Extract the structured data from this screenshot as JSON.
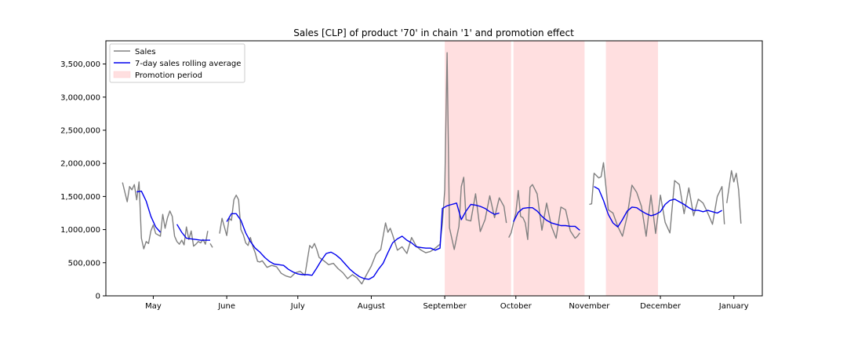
{
  "chart_data": {
    "type": "line",
    "title": "Sales [CLP] of product '70' in chain '1' and promotion effect",
    "xlabel": "",
    "ylabel": "",
    "x_tick_labels": [
      "May",
      "June",
      "July",
      "August",
      "September",
      "October",
      "November",
      "December",
      "January"
    ],
    "y_tick_labels": [
      "0",
      "500,000",
      "1,000,000",
      "1,500,000",
      "2,000,000",
      "2,500,000",
      "3,000,000",
      "3,500,000"
    ],
    "ylim": [
      0,
      3850000
    ],
    "xlim": [
      "2021-04-11",
      "2022-01-13"
    ],
    "grid": false,
    "legend": {
      "placement": "top-left",
      "entries": [
        "Sales",
        "7-day sales rolling average",
        "Promotion period"
      ]
    },
    "colors": {
      "sales": "#808080",
      "rolling": "#0000ee",
      "promotion": "#ffdfe0"
    },
    "series": [
      {
        "name": "Sales",
        "x": [
          "2021-04-18",
          "2021-04-20",
          "2021-04-21",
          "2021-04-22",
          "2021-04-23",
          "2021-04-24",
          "2021-04-25",
          "2021-04-26",
          "2021-04-27",
          "2021-04-28",
          "2021-04-29",
          "2021-04-30",
          "2021-05-01",
          "2021-05-02",
          "2021-05-03",
          "2021-05-04",
          "2021-05-05",
          "2021-05-06",
          "2021-05-07",
          "2021-05-08",
          "2021-05-09",
          "2021-05-10",
          "2021-05-11",
          "2021-05-12",
          "2021-05-13",
          "2021-05-14",
          "2021-05-15",
          "2021-05-16",
          "2021-05-17",
          "2021-05-18",
          "2021-05-19",
          "2021-05-20",
          "2021-05-21",
          "2021-05-22",
          "2021-05-23",
          "2021-05-24",
          null,
          "2021-05-25",
          "2021-05-26",
          null,
          "2021-05-29",
          "2021-05-30",
          "2021-06-01",
          "2021-06-02",
          "2021-06-03",
          "2021-06-04",
          "2021-06-05",
          "2021-06-06",
          "2021-06-07",
          "2021-06-08",
          "2021-06-09",
          "2021-06-10",
          "2021-06-11",
          "2021-06-12",
          "2021-06-13",
          "2021-06-14",
          "2021-06-15",
          "2021-06-16",
          "2021-06-18",
          "2021-06-20",
          "2021-06-22",
          "2021-06-24",
          "2021-06-26",
          "2021-06-28",
          "2021-06-30",
          "2021-07-02",
          "2021-07-04",
          "2021-07-06",
          "2021-07-07",
          "2021-07-08",
          "2021-07-09",
          "2021-07-10",
          "2021-07-12",
          "2021-07-14",
          "2021-07-16",
          "2021-07-18",
          "2021-07-20",
          "2021-07-22",
          "2021-07-24",
          "2021-07-26",
          "2021-07-28",
          "2021-07-30",
          "2021-08-01",
          "2021-08-03",
          "2021-08-05",
          "2021-08-07",
          "2021-08-08",
          "2021-08-09",
          "2021-08-10",
          "2021-08-12",
          "2021-08-14",
          "2021-08-16",
          "2021-08-18",
          "2021-08-20",
          "2021-08-22",
          "2021-08-24",
          "2021-08-26",
          "2021-08-28",
          "2021-08-30",
          "2021-08-31",
          "2021-09-01",
          "2021-09-02",
          "2021-09-03",
          "2021-09-05",
          "2021-09-07",
          "2021-09-08",
          "2021-09-09",
          "2021-09-10",
          "2021-09-12",
          "2021-09-14",
          "2021-09-16",
          "2021-09-18",
          "2021-09-20",
          "2021-09-22",
          "2021-09-24",
          "2021-09-26",
          "2021-09-27",
          null,
          "2021-09-28",
          "2021-09-29",
          "2021-10-01",
          "2021-10-02",
          "2021-10-03",
          "2021-10-04",
          "2021-10-05",
          "2021-10-06",
          "2021-10-07",
          "2021-10-08",
          "2021-10-10",
          "2021-10-12",
          "2021-10-14",
          "2021-10-16",
          "2021-10-18",
          "2021-10-20",
          "2021-10-22",
          "2021-10-24",
          "2021-10-26",
          "2021-10-27",
          "2021-10-28",
          null,
          "2021-11-01",
          "2021-11-02",
          "2021-11-03",
          "2021-11-05",
          "2021-11-06",
          "2021-11-07",
          "2021-11-09",
          "2021-11-11",
          "2021-11-13",
          "2021-11-15",
          "2021-11-17",
          "2021-11-19",
          "2021-11-21",
          "2021-11-23",
          "2021-11-25",
          "2021-11-27",
          "2021-11-29",
          "2021-12-01",
          "2021-12-03",
          "2021-12-05",
          "2021-12-07",
          "2021-12-09",
          "2021-12-11",
          "2021-12-13",
          "2021-12-15",
          "2021-12-17",
          "2021-12-19",
          "2021-12-21",
          "2021-12-23",
          "2021-12-25",
          "2021-12-27",
          "2021-12-28",
          null,
          "2021-12-29",
          "2021-12-31",
          "2022-01-01",
          "2022-01-02",
          "2022-01-03",
          "2022-01-04"
        ],
        "values": [
          1710000,
          1420000,
          1650000,
          1600000,
          1680000,
          1450000,
          1720000,
          870000,
          710000,
          820000,
          790000,
          980000,
          1070000,
          940000,
          920000,
          900000,
          1230000,
          1020000,
          1180000,
          1280000,
          1200000,
          900000,
          820000,
          780000,
          840000,
          770000,
          1040000,
          850000,
          980000,
          750000,
          780000,
          820000,
          800000,
          850000,
          780000,
          980000,
          null,
          790000,
          730000,
          null,
          940000,
          1170000,
          910000,
          1170000,
          1140000,
          1450000,
          1520000,
          1450000,
          1000000,
          920000,
          800000,
          760000,
          880000,
          750000,
          650000,
          520000,
          510000,
          530000,
          430000,
          460000,
          440000,
          340000,
          300000,
          280000,
          350000,
          370000,
          310000,
          760000,
          720000,
          790000,
          700000,
          580000,
          530000,
          470000,
          490000,
          410000,
          350000,
          260000,
          320000,
          270000,
          180000,
          320000,
          450000,
          630000,
          700000,
          1100000,
          960000,
          1020000,
          920000,
          690000,
          740000,
          640000,
          880000,
          750000,
          690000,
          650000,
          670000,
          720000,
          780000,
          1100000,
          1600000,
          3670000,
          1030000,
          700000,
          1050000,
          1650000,
          1790000,
          1150000,
          1130000,
          1540000,
          970000,
          1150000,
          1510000,
          1180000,
          1480000,
          1350000,
          1100000,
          null,
          880000,
          950000,
          1250000,
          1590000,
          1200000,
          1180000,
          1100000,
          850000,
          1640000,
          1680000,
          1540000,
          990000,
          1400000,
          1050000,
          870000,
          1340000,
          1300000,
          980000,
          870000,
          900000,
          950000,
          null,
          1380000,
          1390000,
          1850000,
          1780000,
          1800000,
          2010000,
          1300000,
          1250000,
          1050000,
          900000,
          1210000,
          1670000,
          1560000,
          1350000,
          900000,
          1520000,
          940000,
          1520000,
          1110000,
          950000,
          1740000,
          1680000,
          1240000,
          1630000,
          1210000,
          1460000,
          1400000,
          1250000,
          1080000,
          1500000,
          1650000,
          1080000,
          null,
          1400000,
          1890000,
          1720000,
          1850000,
          1600000,
          1090000
        ]
      },
      {
        "name": "7-day sales rolling average",
        "x": [
          "2021-04-24",
          "2021-04-26",
          "2021-04-28",
          "2021-04-30",
          "2021-05-02",
          "2021-05-04",
          null,
          "2021-05-11",
          "2021-05-13",
          "2021-05-15",
          "2021-05-17",
          "2021-05-19",
          "2021-05-21",
          "2021-05-23",
          "2021-05-25",
          null,
          "2021-06-01",
          "2021-06-03",
          "2021-06-05",
          "2021-06-07",
          "2021-06-09",
          "2021-06-11",
          "2021-06-13",
          "2021-06-15",
          "2021-06-17",
          "2021-06-19",
          "2021-06-21",
          "2021-06-23",
          "2021-06-25",
          "2021-06-27",
          "2021-06-29",
          "2021-07-01",
          "2021-07-03",
          "2021-07-05",
          "2021-07-07",
          "2021-07-09",
          "2021-07-11",
          "2021-07-13",
          "2021-07-15",
          "2021-07-17",
          "2021-07-19",
          "2021-07-21",
          "2021-07-23",
          "2021-07-25",
          "2021-07-27",
          "2021-07-29",
          "2021-07-31",
          "2021-08-02",
          "2021-08-04",
          "2021-08-06",
          "2021-08-08",
          "2021-08-10",
          "2021-08-12",
          "2021-08-14",
          "2021-08-16",
          "2021-08-18",
          "2021-08-20",
          "2021-08-22",
          "2021-08-24",
          "2021-08-26",
          "2021-08-28",
          "2021-08-30",
          "2021-08-31",
          "2021-09-02",
          "2021-09-04",
          "2021-09-06",
          "2021-09-08",
          "2021-09-10",
          "2021-09-12",
          "2021-09-14",
          "2021-09-16",
          "2021-09-18",
          "2021-09-20",
          "2021-09-22",
          "2021-09-24",
          null,
          "2021-09-30",
          "2021-10-02",
          "2021-10-04",
          "2021-10-06",
          "2021-10-08",
          "2021-10-10",
          "2021-10-12",
          "2021-10-14",
          "2021-10-16",
          "2021-10-18",
          "2021-10-20",
          "2021-10-22",
          "2021-10-24",
          "2021-10-26",
          "2021-10-28",
          null,
          "2021-11-03",
          "2021-11-05",
          "2021-11-07",
          "2021-11-09",
          "2021-11-11",
          "2021-11-13",
          "2021-11-15",
          "2021-11-17",
          "2021-11-19",
          "2021-11-21",
          "2021-11-23",
          "2021-11-25",
          "2021-11-27",
          "2021-11-29",
          "2021-12-01",
          "2021-12-03",
          "2021-12-05",
          "2021-12-07",
          "2021-12-09",
          "2021-12-11",
          "2021-12-13",
          "2021-12-15",
          "2021-12-17",
          "2021-12-19",
          "2021-12-21",
          "2021-12-23",
          "2021-12-25",
          "2021-12-27"
        ],
        "values": [
          1570000,
          1580000,
          1430000,
          1200000,
          1040000,
          960000,
          null,
          1080000,
          960000,
          870000,
          860000,
          850000,
          840000,
          840000,
          840000,
          null,
          1120000,
          1240000,
          1240000,
          1140000,
          950000,
          820000,
          720000,
          660000,
          580000,
          520000,
          480000,
          470000,
          460000,
          400000,
          360000,
          330000,
          320000,
          320000,
          310000,
          420000,
          540000,
          640000,
          660000,
          620000,
          560000,
          480000,
          400000,
          340000,
          290000,
          260000,
          250000,
          290000,
          400000,
          490000,
          650000,
          800000,
          860000,
          900000,
          840000,
          800000,
          740000,
          730000,
          720000,
          720000,
          690000,
          720000,
          1320000,
          1360000,
          1380000,
          1400000,
          1150000,
          1280000,
          1380000,
          1370000,
          1350000,
          1320000,
          1270000,
          1230000,
          1250000,
          null,
          1120000,
          1260000,
          1320000,
          1330000,
          1330000,
          1280000,
          1200000,
          1140000,
          1100000,
          1080000,
          1060000,
          1060000,
          1050000,
          1050000,
          990000,
          null,
          1650000,
          1610000,
          1440000,
          1230000,
          1100000,
          1040000,
          1150000,
          1280000,
          1340000,
          1330000,
          1280000,
          1240000,
          1210000,
          1230000,
          1270000,
          1380000,
          1440000,
          1460000,
          1420000,
          1380000,
          1330000,
          1290000,
          1290000,
          1270000,
          1290000,
          1270000,
          1250000,
          1290000
        ]
      }
    ],
    "promotion_periods": [
      [
        "2021-09-01",
        "2021-09-29"
      ],
      [
        "2021-09-30",
        "2021-10-30"
      ],
      [
        "2021-11-08",
        "2021-11-30"
      ]
    ]
  }
}
